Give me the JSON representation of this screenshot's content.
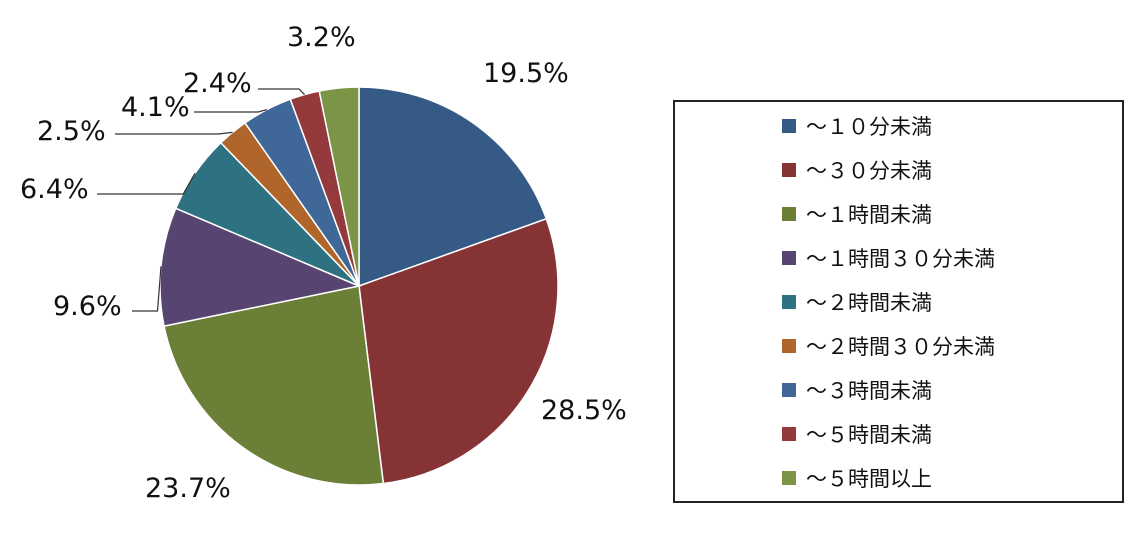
{
  "chart_data": {
    "type": "pie",
    "categories": [
      "～１０分未満",
      "～３０分未満",
      "～１時間未満",
      "～１時間３０分未満",
      "～２時間未満",
      "～２時間３０分未満",
      "～３時間未満",
      "～５時間未満",
      "～５時間以上"
    ],
    "values": [
      19.5,
      28.5,
      23.7,
      9.6,
      6.4,
      2.5,
      4.1,
      2.4,
      3.2
    ],
    "labels": [
      "19.5%",
      "28.5%",
      "23.7%",
      "9.6%",
      "6.4%",
      "2.5%",
      "4.1%",
      "2.4%",
      "3.2%"
    ],
    "colors": [
      "#355a85",
      "#863335",
      "#6b7f37",
      "#574470",
      "#2e7282",
      "#b0652b",
      "#3f6797",
      "#953a3c",
      "#7c9446"
    ],
    "legend_position": "right",
    "start_angle": "12 o'clock",
    "direction": "clockwise"
  }
}
